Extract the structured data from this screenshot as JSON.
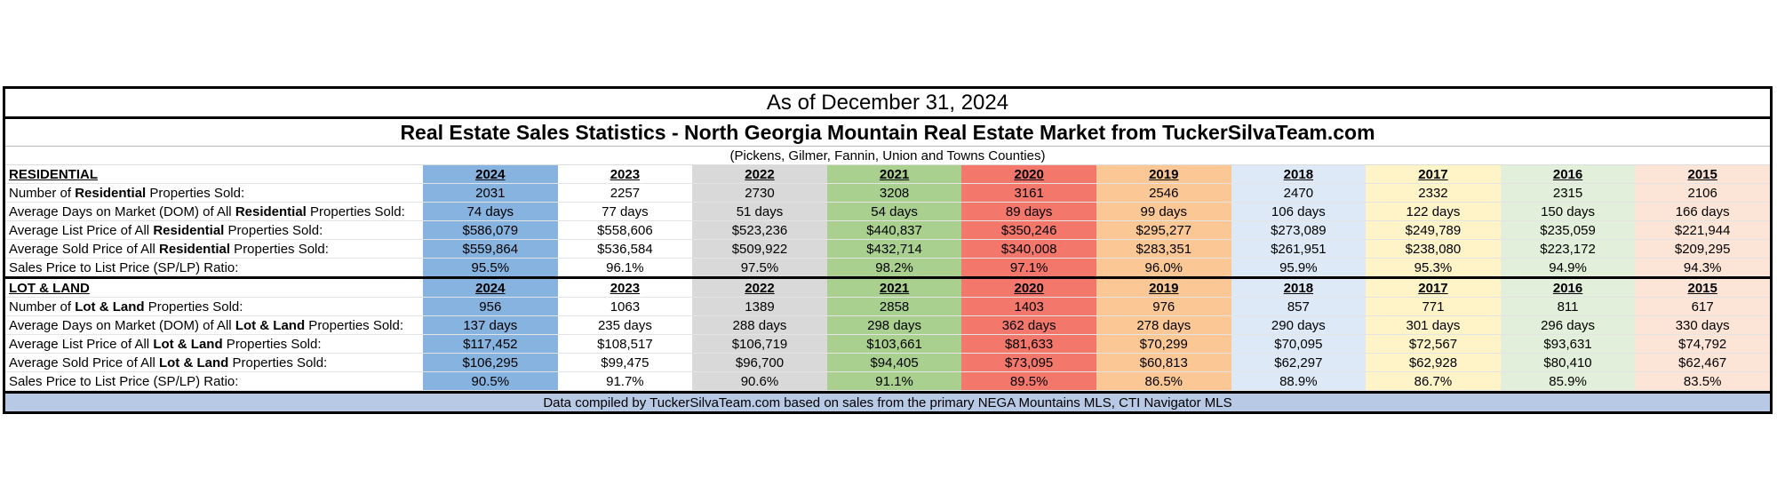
{
  "as_of": "As of December 31, 2024",
  "headline": "Real Estate Sales Statistics - North Georgia Mountain Real Estate Market from TuckerSilvaTeam.com",
  "counties": "(Pickens, Gilmer, Fannin, Union and Towns Counties)",
  "years": [
    "2024",
    "2023",
    "2022",
    "2021",
    "2020",
    "2019",
    "2018",
    "2017",
    "2016",
    "2015"
  ],
  "year_colors": [
    "#86b3e0",
    "#ffffff",
    "#d9d9d9",
    "#a9d08e",
    "#f4776b",
    "#fbc895",
    "#dde9f6",
    "#fff3c8",
    "#e2efda",
    "#fce4d6"
  ],
  "residential": {
    "section_label": "RESIDENTIAL",
    "rows": [
      {
        "pre": "Number of ",
        "bold": "Residential",
        "post": " Properties Sold:",
        "values": [
          "2031",
          "2257",
          "2730",
          "3208",
          "3161",
          "2546",
          "2470",
          "2332",
          "2315",
          "2106"
        ]
      },
      {
        "pre": "Average Days on Market (DOM) of All ",
        "bold": "Residential",
        "post": " Properties Sold:",
        "values": [
          "74 days",
          "77 days",
          "51 days",
          "54 days",
          "89 days",
          "99 days",
          "106 days",
          "122 days",
          "150 days",
          "166 days"
        ]
      },
      {
        "pre": "Average List Price of All ",
        "bold": "Residential",
        "post": " Properties Sold:",
        "values": [
          "$586,079",
          "$558,606",
          "$523,236",
          "$440,837",
          "$350,246",
          "$295,277",
          "$273,089",
          "$249,789",
          "$235,059",
          "$221,944"
        ]
      },
      {
        "pre": "Average Sold Price of All ",
        "bold": "Residential",
        "post": " Properties Sold:",
        "values": [
          "$559,864",
          "$536,584",
          "$509,922",
          "$432,714",
          "$340,008",
          "$283,351",
          "$261,951",
          "$238,080",
          "$223,172",
          "$209,295"
        ]
      },
      {
        "pre": "Sales Price to List Price (SP/LP) Ratio:",
        "bold": "",
        "post": "",
        "values": [
          "95.5%",
          "96.1%",
          "97.5%",
          "98.2%",
          "97.1%",
          "96.0%",
          "95.9%",
          "95.3%",
          "94.9%",
          "94.3%"
        ]
      }
    ]
  },
  "lot_land": {
    "section_label": "LOT & LAND",
    "rows": [
      {
        "pre": "Number of ",
        "bold": "Lot & Land",
        "post": " Properties Sold:",
        "values": [
          "956",
          "1063",
          "1389",
          "2858",
          "1403",
          "976",
          "857",
          "771",
          "811",
          "617"
        ]
      },
      {
        "pre": "Average Days on Market (DOM) of All ",
        "bold": "Lot & Land",
        "post": " Properties Sold:",
        "values": [
          "137 days",
          "235 days",
          "288 days",
          "298 days",
          "362 days",
          "278 days",
          "290 days",
          "301 days",
          "296 days",
          "330 days"
        ]
      },
      {
        "pre": "Average List Price of All ",
        "bold": "Lot & Land",
        "post": " Properties Sold:",
        "values": [
          "$117,452",
          "$108,517",
          "$106,719",
          "$103,661",
          "$81,633",
          "$70,299",
          "$70,095",
          "$72,567",
          "$93,631",
          "$74,792"
        ]
      },
      {
        "pre": "Average Sold Price of All ",
        "bold": "Lot & Land",
        "post": " Properties Sold:",
        "values": [
          "$106,295",
          "$99,475",
          "$96,700",
          "$94,405",
          "$73,095",
          "$60,813",
          "$62,297",
          "$62,928",
          "$80,410",
          "$62,467"
        ]
      },
      {
        "pre": "Sales Price to List Price (SP/LP) Ratio:",
        "bold": "",
        "post": "",
        "values": [
          "90.5%",
          "91.7%",
          "90.6%",
          "91.1%",
          "89.5%",
          "86.5%",
          "88.9%",
          "86.7%",
          "85.9%",
          "83.5%"
        ]
      }
    ]
  },
  "footer": "Data compiled by TuckerSilvaTeam.com based on sales from the primary NEGA Mountains MLS,  CTI Navigator MLS"
}
